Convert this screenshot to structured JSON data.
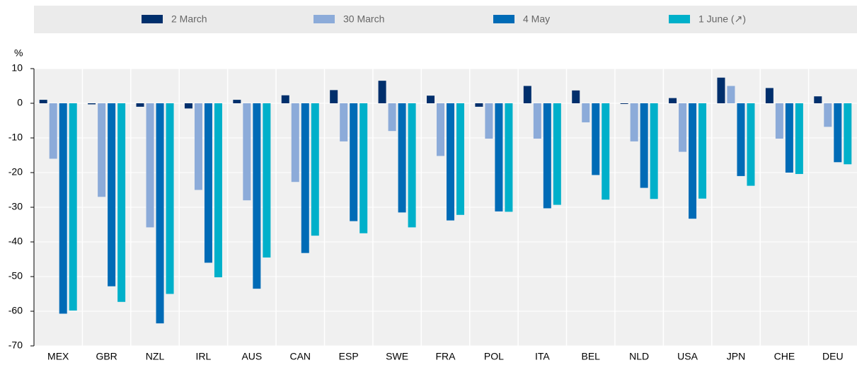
{
  "chart_data": {
    "type": "bar",
    "y_label": "%",
    "categories": [
      "MEX",
      "GBR",
      "NZL",
      "IRL",
      "AUS",
      "CAN",
      "ESP",
      "SWE",
      "FRA",
      "POL",
      "ITA",
      "BEL",
      "NLD",
      "USA",
      "JPN",
      "CHE",
      "DEU"
    ],
    "series": [
      {
        "name": "2 March",
        "color": "#002f6c",
        "values": [
          1,
          -0.3,
          -1,
          -1.5,
          1,
          2.3,
          3.8,
          6.5,
          2.2,
          -1,
          5,
          3.7,
          -0.2,
          1.5,
          7.4,
          4.4,
          2
        ]
      },
      {
        "name": "30 March",
        "color": "#8cabd9",
        "values": [
          -16,
          -27,
          -35.8,
          -25,
          -28,
          -22.7,
          -11,
          -8,
          -15.2,
          -10.2,
          -10.2,
          -5.5,
          -11,
          -14,
          5,
          -10.2,
          -6.8
        ]
      },
      {
        "name": "4 May",
        "color": "#006bb6",
        "values": [
          -60.7,
          -52.8,
          -63.5,
          -46,
          -53.5,
          -43.2,
          -34,
          -31.5,
          -33.8,
          -31.2,
          -30.3,
          -20.7,
          -24.4,
          -33.3,
          -21,
          -20,
          -17
        ]
      },
      {
        "name": "1 June (↗)",
        "color": "#00b0ca",
        "values": [
          -59.8,
          -57.3,
          -55,
          -50.2,
          -44.5,
          -38.2,
          -37.5,
          -35.8,
          -32.2,
          -31.3,
          -29.3,
          -27.8,
          -27.6,
          -27.5,
          -23.8,
          -20.4,
          -17.6
        ]
      }
    ],
    "ylim": [
      -70,
      10
    ],
    "yticks": [
      10,
      0,
      -10,
      -20,
      -30,
      -40,
      -50,
      -60,
      -70
    ],
    "grid": true
  }
}
